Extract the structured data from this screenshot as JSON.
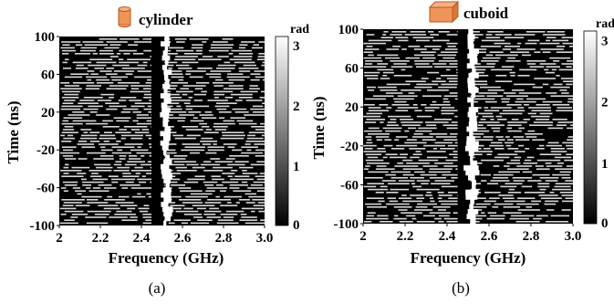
{
  "chart_data": [
    {
      "type": "heatmap",
      "title": "cylinder",
      "title_icon": "orange-cylinder-icon",
      "xlabel": "Frequency (GHz)",
      "ylabel": "Time (ns)",
      "xlim": [
        2.0,
        3.0
      ],
      "ylim": [
        -100,
        100
      ],
      "x_ticks": [
        "2",
        "2.2",
        "2.4",
        "2.6",
        "2.8",
        "3.0"
      ],
      "y_ticks": [
        "100",
        "60",
        "20",
        "-20",
        "-60",
        "-100"
      ],
      "colorbar": {
        "label": "rad",
        "range": [
          0,
          3.14
        ],
        "ticks": [
          "3",
          "2",
          "1",
          "0"
        ],
        "colormap": "gray"
      },
      "bright_feature_frequency_ghz": 2.52,
      "panel_label": "(a)"
    },
    {
      "type": "heatmap",
      "title": "cuboid",
      "title_icon": "orange-cuboid-icon",
      "xlabel": "Frequency (GHz)",
      "ylabel": "Time (ns)",
      "xlim": [
        2.0,
        3.0
      ],
      "ylim": [
        -100,
        100
      ],
      "x_ticks": [
        "2",
        "2.2",
        "2.4",
        "2.6",
        "2.8",
        "3.0"
      ],
      "y_ticks": [
        "100",
        "60",
        "20",
        "-20",
        "-60",
        "-100"
      ],
      "colorbar": {
        "label": "rad",
        "range": [
          0,
          3.14
        ],
        "ticks": [
          "3",
          "2",
          "1",
          "0"
        ],
        "colormap": "gray"
      },
      "bright_feature_frequency_ghz": 2.52,
      "panel_label": "(b)"
    }
  ],
  "colors": {
    "icon_fill": "#f0955a",
    "icon_stroke": "#b85a1e",
    "stripe": "#d8d8d8",
    "background": "#000000"
  }
}
